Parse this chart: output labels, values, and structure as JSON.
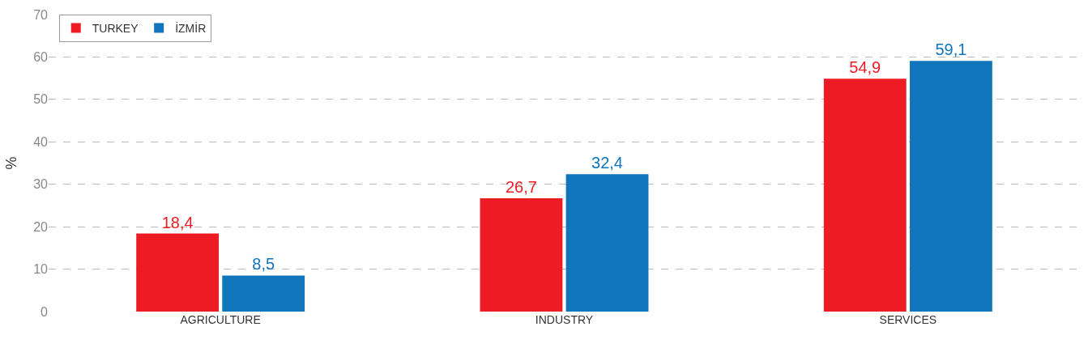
{
  "chart_data": {
    "type": "bar",
    "ylabel": "%",
    "categories": [
      "AGRICULTURE",
      "INDUSTRY",
      "SERVICES"
    ],
    "series": [
      {
        "name": "TURKEY",
        "color": "#ed1c24",
        "values": [
          18.4,
          26.7,
          54.9
        ],
        "value_labels": [
          "18,4",
          "26,7",
          "54,9"
        ]
      },
      {
        "name": "İZMİR",
        "color": "#1175bb",
        "values": [
          8.5,
          32.4,
          59.1
        ],
        "value_labels": [
          "8,5",
          "32,4",
          "59,1"
        ]
      }
    ],
    "ylim": [
      0,
      70
    ],
    "yticks": [
      0,
      10,
      20,
      30,
      40,
      50,
      60,
      70
    ],
    "grid": "y",
    "legend": "top left"
  }
}
